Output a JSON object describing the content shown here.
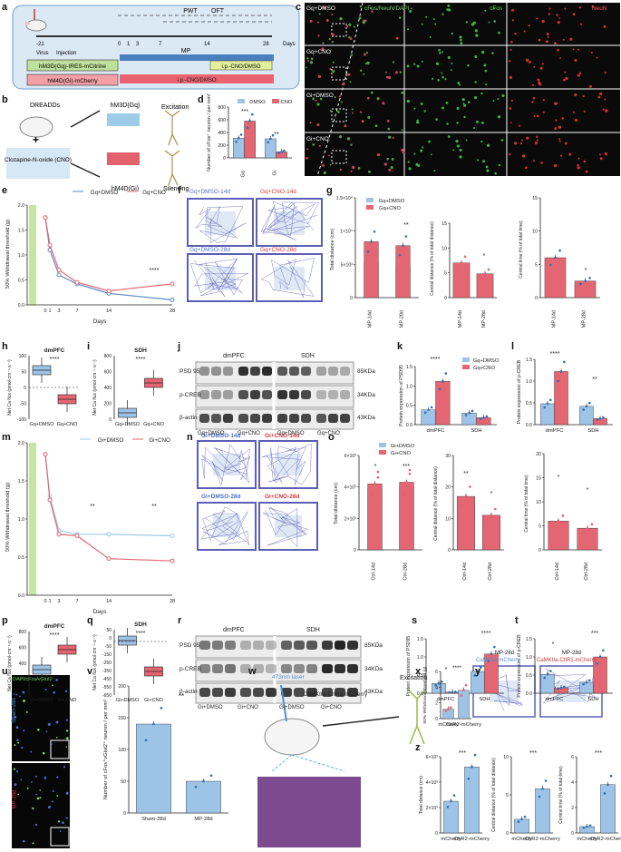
{
  "panels": {
    "a": {
      "letter": "a",
      "pwt": "PWT",
      "oft": "OFT",
      "mp": "MP",
      "days": "Days",
      "virus": "Virus",
      "injection": "Injection",
      "box1": "hM3D(Gq)-IRES-mCitrine",
      "box2": "hM4D(Gi)-mCherry",
      "box3": "i.p.-CNO/DMSO",
      "box4": "i.p.-CNO/DMSO",
      "ticks": [
        "-21",
        "0",
        "1",
        "3",
        "7",
        "14",
        "28"
      ]
    },
    "b": {
      "letter": "b",
      "dreadds": "DREADDs",
      "drug": "Clozapine-N-oxide (CNO)",
      "gq": "hM3D(Gq)",
      "gi": "hM4D(Gi)",
      "exc": "Excitation",
      "sil": "Silencing",
      "plus": "+"
    },
    "c": {
      "letter": "c",
      "header_merge": "cFos/NeuN/DAPI",
      "header_cfos": "cFos",
      "header_neun": "NeuN",
      "rows": [
        "Gq+DMSO",
        "Gq+CNO",
        "Gi+DMSO",
        "Gi+CNO"
      ]
    },
    "d": {
      "letter": "d",
      "legend": [
        "DMSO",
        "CNO"
      ],
      "ylabel": "Number of cFos⁺ neuron / per mm²",
      "groups": [
        "Gq",
        "Gi"
      ],
      "sig": [
        "***",
        "**"
      ],
      "yticks": [
        "0",
        "200",
        "400",
        "600",
        "800"
      ]
    },
    "e": {
      "letter": "e",
      "legend": [
        "Gq+DMSO",
        "Gq+CNO"
      ],
      "ylabel": "50% Withdrawal threshold (g)",
      "xlabel": "Days",
      "sig": "****",
      "xticks": [
        "0",
        "1",
        "3",
        "7",
        "14",
        "28"
      ],
      "yticks": [
        "0.0",
        "0.5",
        "1.0",
        "1.5",
        "2.0"
      ]
    },
    "f": {
      "letter": "f",
      "labels": [
        "Gq+DMSO-14d",
        "Gq+CNO-14d",
        "Gq+DMSO-28d",
        "Gq+CNO-28d"
      ]
    },
    "g": {
      "letter": "g",
      "legend": [
        "Gq+DMSO",
        "Gq+CNO"
      ],
      "y1": "Total distance (cm)",
      "y2": "Central distance (% of total distance)",
      "y3": "Central time (% of total time)",
      "x": [
        "MP-14d",
        "MP-28d"
      ],
      "sig": [
        "**",
        "*",
        "*"
      ],
      "t1": [
        "0",
        "5×10³",
        "1×10⁴",
        "1.5×10⁴"
      ],
      "t2": [
        "0",
        "5",
        "10",
        "15"
      ],
      "t3": [
        "0",
        "5",
        "10",
        "15"
      ]
    },
    "h": {
      "letter": "h",
      "title": "dmPFC",
      "ylabel": "Net Ca flux (pmol·cm⁻¹·s⁻¹)",
      "x": [
        "Gq+DMSO",
        "Gq+CNO"
      ],
      "sig": "****",
      "yticks": [
        "100",
        "50",
        "0",
        "-50",
        "-100"
      ]
    },
    "i": {
      "letter": "i",
      "title": "SDH",
      "ylabel": "Net Ca flux (pmol·cm⁻¹·s⁻¹)",
      "x": [
        "Gq+DMSO",
        "Gq+CNO"
      ],
      "sig": "****",
      "yticks": [
        "800",
        "600",
        "400",
        "200",
        "0"
      ]
    },
    "j": {
      "letter": "j",
      "h1": "dmPFC",
      "h2": "SDH",
      "rows": [
        "PSD 95",
        "p-CREB",
        "β-actin"
      ],
      "kda": [
        "85KDa",
        "34KDa",
        "43KDa"
      ],
      "x": [
        "Gq+DMSO",
        "Gq+CNO",
        "Gq+DMSO",
        "Gq+CNO"
      ]
    },
    "k": {
      "letter": "k",
      "legend": [
        "Gq+DMSO",
        "Gq+CNO"
      ],
      "ylabel": "Protein expression of PSD95",
      "x": [
        "dmPFC",
        "SDH"
      ],
      "sig": "****",
      "yticks": [
        "0.0",
        "0.5",
        "1.0",
        "1.5"
      ]
    },
    "l": {
      "letter": "l",
      "ylabel": "Protein expression of p-CREB",
      "x": [
        "dmPFC",
        "SDH"
      ],
      "sig": [
        "****",
        "**"
      ],
      "yticks": [
        "0.0",
        "0.5",
        "1.0",
        "1.5"
      ]
    },
    "m": {
      "letter": "m",
      "legend": [
        "Gi+DMSO",
        "Gi+CNO"
      ],
      "ylabel": "50% Withdrawal threshold (g)",
      "xlabel": "Days",
      "sig": [
        "**",
        "**"
      ],
      "xticks": [
        "0",
        "1",
        "3",
        "7",
        "14",
        "28"
      ],
      "yticks": [
        "0.0",
        "0.5",
        "1.0",
        "1.5",
        "2.0"
      ]
    },
    "n": {
      "letter": "n",
      "labels": [
        "Gi+DMSO-14d",
        "Gi+CNO-14d",
        "Gi+DMSO-28d",
        "Gi+CNO-28d"
      ]
    },
    "o": {
      "letter": "o",
      "legend": [
        "Gi+DMSO",
        "Gi+CNO"
      ],
      "y1": "Total distance (cm)",
      "y2": "Central distance (% of total distance)",
      "y3": "Central time (% of total time)",
      "x": [
        "Ctrl-14d",
        "Ctrl-28d"
      ],
      "sig": [
        "*",
        "***",
        "**",
        "*",
        "*",
        "*"
      ],
      "t1": [
        "0",
        "2×10³",
        "4×10³",
        "6×10³"
      ],
      "t2": [
        "0",
        "10",
        "20",
        "30"
      ],
      "t3": [
        "0",
        "5",
        "10",
        "15",
        "20"
      ]
    },
    "p": {
      "letter": "p",
      "title": "dmPFC",
      "ylabel": "Net Ca flux (pmol·cm⁻¹·s⁻¹)",
      "x": [
        "Gi+DMSO",
        "Gi+CNO"
      ],
      "sig": "****",
      "yticks": [
        "800",
        "600",
        "400",
        "200",
        "0"
      ]
    },
    "q": {
      "letter": "q",
      "title": "SDH",
      "ylabel": "Net Ca flux (pmol·cm⁻¹·s⁻¹)",
      "x": [
        "Gi+DMSO",
        "Gi+CNO"
      ],
      "sig": "****",
      "yticks": [
        "50",
        "0",
        "-50",
        "-150",
        "-250",
        "-350",
        "-450",
        "-550",
        "-650"
      ]
    },
    "r": {
      "letter": "r",
      "h1": "dmPFC",
      "h2": "SDH",
      "rows": [
        "PSD 95",
        "p-CREB",
        "β-actin"
      ],
      "kda": [
        "85KDa",
        "34KDa",
        "43KDa"
      ],
      "x": [
        "Gi+DMSO",
        "Gi+CNO",
        "Gi+DMSO",
        "Gi+CNO"
      ]
    },
    "s": {
      "letter": "s",
      "ylabel": "Protein expression of PSD95",
      "x": [
        "dmPFC",
        "SDH"
      ],
      "sig": [
        "*",
        "****"
      ],
      "yticks": [
        "0.0",
        "0.5",
        "1.0",
        "1.5"
      ]
    },
    "t": {
      "letter": "t",
      "ylabel": "Protein expression of p-CREB",
      "x": [
        "dmPFC",
        "SDH"
      ],
      "sig": [
        "*",
        "***"
      ],
      "yticks": [
        "0.0",
        "0.5",
        "1.0",
        "1.5"
      ]
    },
    "u": {
      "letter": "u",
      "header": "DAPI/cFos/vGlut2",
      "rows": [
        "Sham-28d",
        "MP-28d"
      ]
    },
    "v": {
      "letter": "v",
      "ylabel": "Number of cFos⁺vGlut2⁺ neuron / per mm²",
      "x": [
        "Sham-28d",
        "MP-28d"
      ],
      "sig": "**",
      "yticks": [
        "0",
        "50",
        "100",
        "150",
        "200"
      ]
    },
    "w": {
      "letter": "w",
      "laser": "473nm laser",
      "virus": "CaMKIIa-ChR2-mCherry",
      "exc": "Excitation"
    },
    "x": {
      "letter": "x",
      "ylabel": "50% Withdrawal threshold (g)",
      "x": [
        "mCherry",
        "ChR2-mCherry"
      ],
      "sig": "****",
      "yticks": [
        "0",
        "2",
        "4",
        "6"
      ]
    },
    "y": {
      "letter": "y",
      "h": [
        "MP-28d",
        "MP-28d"
      ],
      "labels": [
        "CaMKIIa-mCherry",
        "CaMKIIa-ChR2-mCherry"
      ]
    },
    "z": {
      "letter": "z",
      "y1": "Total distance (cm)",
      "y2": "Central distance (% of total distance)",
      "y3": "Central time (% of total time)",
      "x": [
        "mCherry",
        "ChR2-mCherry"
      ],
      "sig": [
        "***",
        "***",
        "***"
      ],
      "t1": [
        "0",
        "2×10³",
        "4×10³",
        "6×10³"
      ],
      "t2": [
        "0",
        "5",
        "10"
      ],
      "t3": [
        "0",
        "2",
        "4",
        "6"
      ]
    }
  },
  "chart_data": [
    {
      "id": "d",
      "type": "bar",
      "categories": [
        "Gq",
        "Gi"
      ],
      "series": [
        {
          "name": "DMSO",
          "values": [
            310,
            300
          ]
        },
        {
          "name": "CNO",
          "values": [
            580,
            95
          ]
        }
      ],
      "ylim": [
        0,
        800
      ]
    },
    {
      "id": "e",
      "type": "line",
      "x": [
        0,
        1,
        3,
        7,
        14,
        28
      ],
      "series": [
        {
          "name": "Gq+DMSO",
          "values": [
            1.75,
            1.1,
            0.6,
            0.42,
            0.23,
            0.1
          ]
        },
        {
          "name": "Gq+CNO",
          "values": [
            1.75,
            1.2,
            0.7,
            0.45,
            0.28,
            0.42
          ]
        }
      ],
      "ylim": [
        0,
        2
      ]
    },
    {
      "id": "g1",
      "type": "bar",
      "categories": [
        "MP-14d",
        "MP-28d"
      ],
      "series": [
        {
          "name": "Gq+DMSO",
          "values": [
            5200,
            4800
          ]
        },
        {
          "name": "Gq+CNO",
          "values": [
            8400,
            7800
          ]
        }
      ],
      "ylim": [
        0,
        15000
      ]
    },
    {
      "id": "g2",
      "type": "bar",
      "categories": [
        "MP-14d",
        "MP-28d"
      ],
      "values": [
        7,
        4.8
      ],
      "ylim": [
        0,
        15
      ]
    },
    {
      "id": "g3",
      "type": "bar",
      "categories": [
        "MP-14d",
        "MP-28d"
      ],
      "values": [
        6,
        2.5
      ],
      "ylim": [
        0,
        15
      ]
    },
    {
      "id": "k",
      "type": "bar",
      "categories": [
        "dmPFC",
        "SDH"
      ],
      "series": [
        {
          "name": "Gq+DMSO",
          "values": [
            0.38,
            0.3
          ]
        },
        {
          "name": "Gq+CNO",
          "values": [
            1.12,
            0.18
          ]
        }
      ],
      "ylim": [
        0,
        1.5
      ]
    },
    {
      "id": "l",
      "type": "bar",
      "categories": [
        "dmPFC",
        "SDH"
      ],
      "series": [
        {
          "name": "Gq+DMSO",
          "values": [
            0.48,
            0.42
          ]
        },
        {
          "name": "Gq+CNO",
          "values": [
            1.22,
            0.14
          ]
        }
      ],
      "ylim": [
        0,
        1.5
      ]
    },
    {
      "id": "m",
      "type": "line",
      "x": [
        0,
        1,
        3,
        7,
        14,
        28
      ],
      "series": [
        {
          "name": "Gi+DMSO",
          "values": [
            1.85,
            1.3,
            0.85,
            0.8,
            0.8,
            0.78
          ]
        },
        {
          "name": "Gi+CNO",
          "values": [
            1.85,
            1.25,
            0.8,
            0.78,
            0.48,
            0.45
          ]
        }
      ],
      "ylim": [
        0,
        2
      ]
    },
    {
      "id": "o1",
      "type": "bar",
      "categories": [
        "Ctrl-14d",
        "Ctrl-28d"
      ],
      "series": [
        {
          "name": "Gi+DMSO",
          "values": [
            3900,
            4100
          ]
        },
        {
          "name": "Gi+CNO",
          "values": [
            4200,
            4300
          ]
        }
      ],
      "ylim": [
        0,
        6000
      ]
    },
    {
      "id": "o2",
      "type": "bar",
      "categories": [
        "Ctrl-14d",
        "Ctrl-28d"
      ],
      "values": [
        17,
        11
      ],
      "ylim": [
        0,
        30
      ]
    },
    {
      "id": "o3",
      "type": "bar",
      "categories": [
        "Ctrl-14d",
        "Ctrl-28d"
      ],
      "values": [
        6,
        4.5
      ],
      "ylim": [
        0,
        20
      ]
    },
    {
      "id": "s",
      "type": "bar",
      "categories": [
        "dmPFC",
        "SDH"
      ],
      "series": [
        {
          "name": "Gi+DMSO",
          "values": [
            0.27,
            0.6
          ]
        },
        {
          "name": "Gi+CNO",
          "values": [
            0.03,
            1.08
          ]
        }
      ],
      "ylim": [
        0,
        1.5
      ]
    },
    {
      "id": "t",
      "type": "bar",
      "categories": [
        "dmPFC",
        "SDH"
      ],
      "series": [
        {
          "name": "Gi+DMSO",
          "values": [
            0.52,
            0.3
          ]
        },
        {
          "name": "Gi+CNO",
          "values": [
            0.15,
            1.0
          ]
        }
      ],
      "ylim": [
        0,
        1.5
      ]
    },
    {
      "id": "v",
      "type": "bar",
      "categories": [
        "Sham-28d",
        "MP-28d"
      ],
      "values": [
        140,
        50
      ],
      "ylim": [
        0,
        200
      ]
    },
    {
      "id": "x",
      "type": "bar",
      "categories": [
        "mCherry",
        "ChR2-mCherry"
      ],
      "values": [
        1.2,
        3.6
      ],
      "ylim": [
        0,
        6
      ]
    },
    {
      "id": "z1",
      "type": "bar",
      "categories": [
        "mCherry",
        "ChR2-mCherry"
      ],
      "values": [
        2500,
        5200
      ],
      "ylim": [
        0,
        6000
      ]
    },
    {
      "id": "z2",
      "type": "bar",
      "categories": [
        "mCherry",
        "ChR2-mCherry"
      ],
      "values": [
        1.8,
        5.8
      ],
      "ylim": [
        0,
        10
      ]
    },
    {
      "id": "z3",
      "type": "bar",
      "categories": [
        "mCherry",
        "ChR2-mCherry"
      ],
      "values": [
        0.5,
        3.8
      ],
      "ylim": [
        0,
        6
      ]
    }
  ],
  "colors": {
    "blue": "#9dc3e6",
    "red": "#e46672",
    "darkred": "#c0392b",
    "dblue": "#5a8ac6",
    "green": "#b7dd8e",
    "micro": "#0a0a0a"
  }
}
